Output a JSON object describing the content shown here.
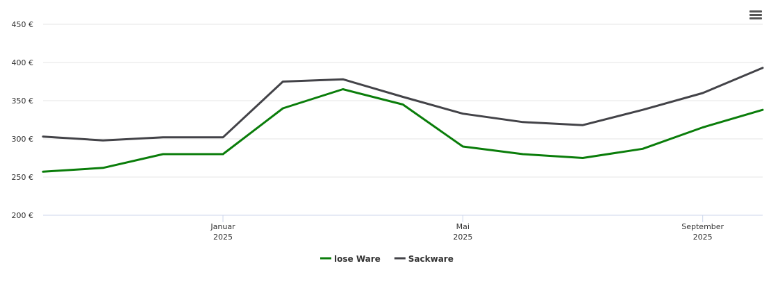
{
  "chart_data": {
    "type": "line",
    "x": [
      "2024-10",
      "2024-11",
      "2024-12",
      "2025-01",
      "2025-02",
      "2025-03",
      "2025-04",
      "2025-05",
      "2025-06",
      "2025-07",
      "2025-08",
      "2025-09",
      "2025-10"
    ],
    "series": [
      {
        "name": "lose Ware",
        "color": "#0a7d0a",
        "values": [
          257,
          262,
          280,
          280,
          340,
          365,
          345,
          290,
          280,
          275,
          287,
          315,
          338
        ]
      },
      {
        "name": "Sackware",
        "color": "#434348",
        "values": [
          303,
          298,
          302,
          302,
          375,
          378,
          355,
          333,
          322,
          318,
          338,
          360,
          393
        ]
      }
    ],
    "xlim": [
      "2024-10",
      "2025-10"
    ],
    "xticks": [
      {
        "value": "2025-01",
        "label": [
          "Januar",
          "2025"
        ]
      },
      {
        "value": "2025-05",
        "label": [
          "Mai",
          "2025"
        ]
      },
      {
        "value": "2025-09",
        "label": [
          "September",
          "2025"
        ]
      }
    ],
    "ylim": [
      200,
      450
    ],
    "yticks": [
      {
        "value": 200,
        "label": "200 €"
      },
      {
        "value": 250,
        "label": "250 €"
      },
      {
        "value": 300,
        "label": "300 €"
      },
      {
        "value": 350,
        "label": "350 €"
      },
      {
        "value": 400,
        "label": "400 €"
      },
      {
        "value": 450,
        "label": "450 €"
      }
    ],
    "grid": true
  }
}
